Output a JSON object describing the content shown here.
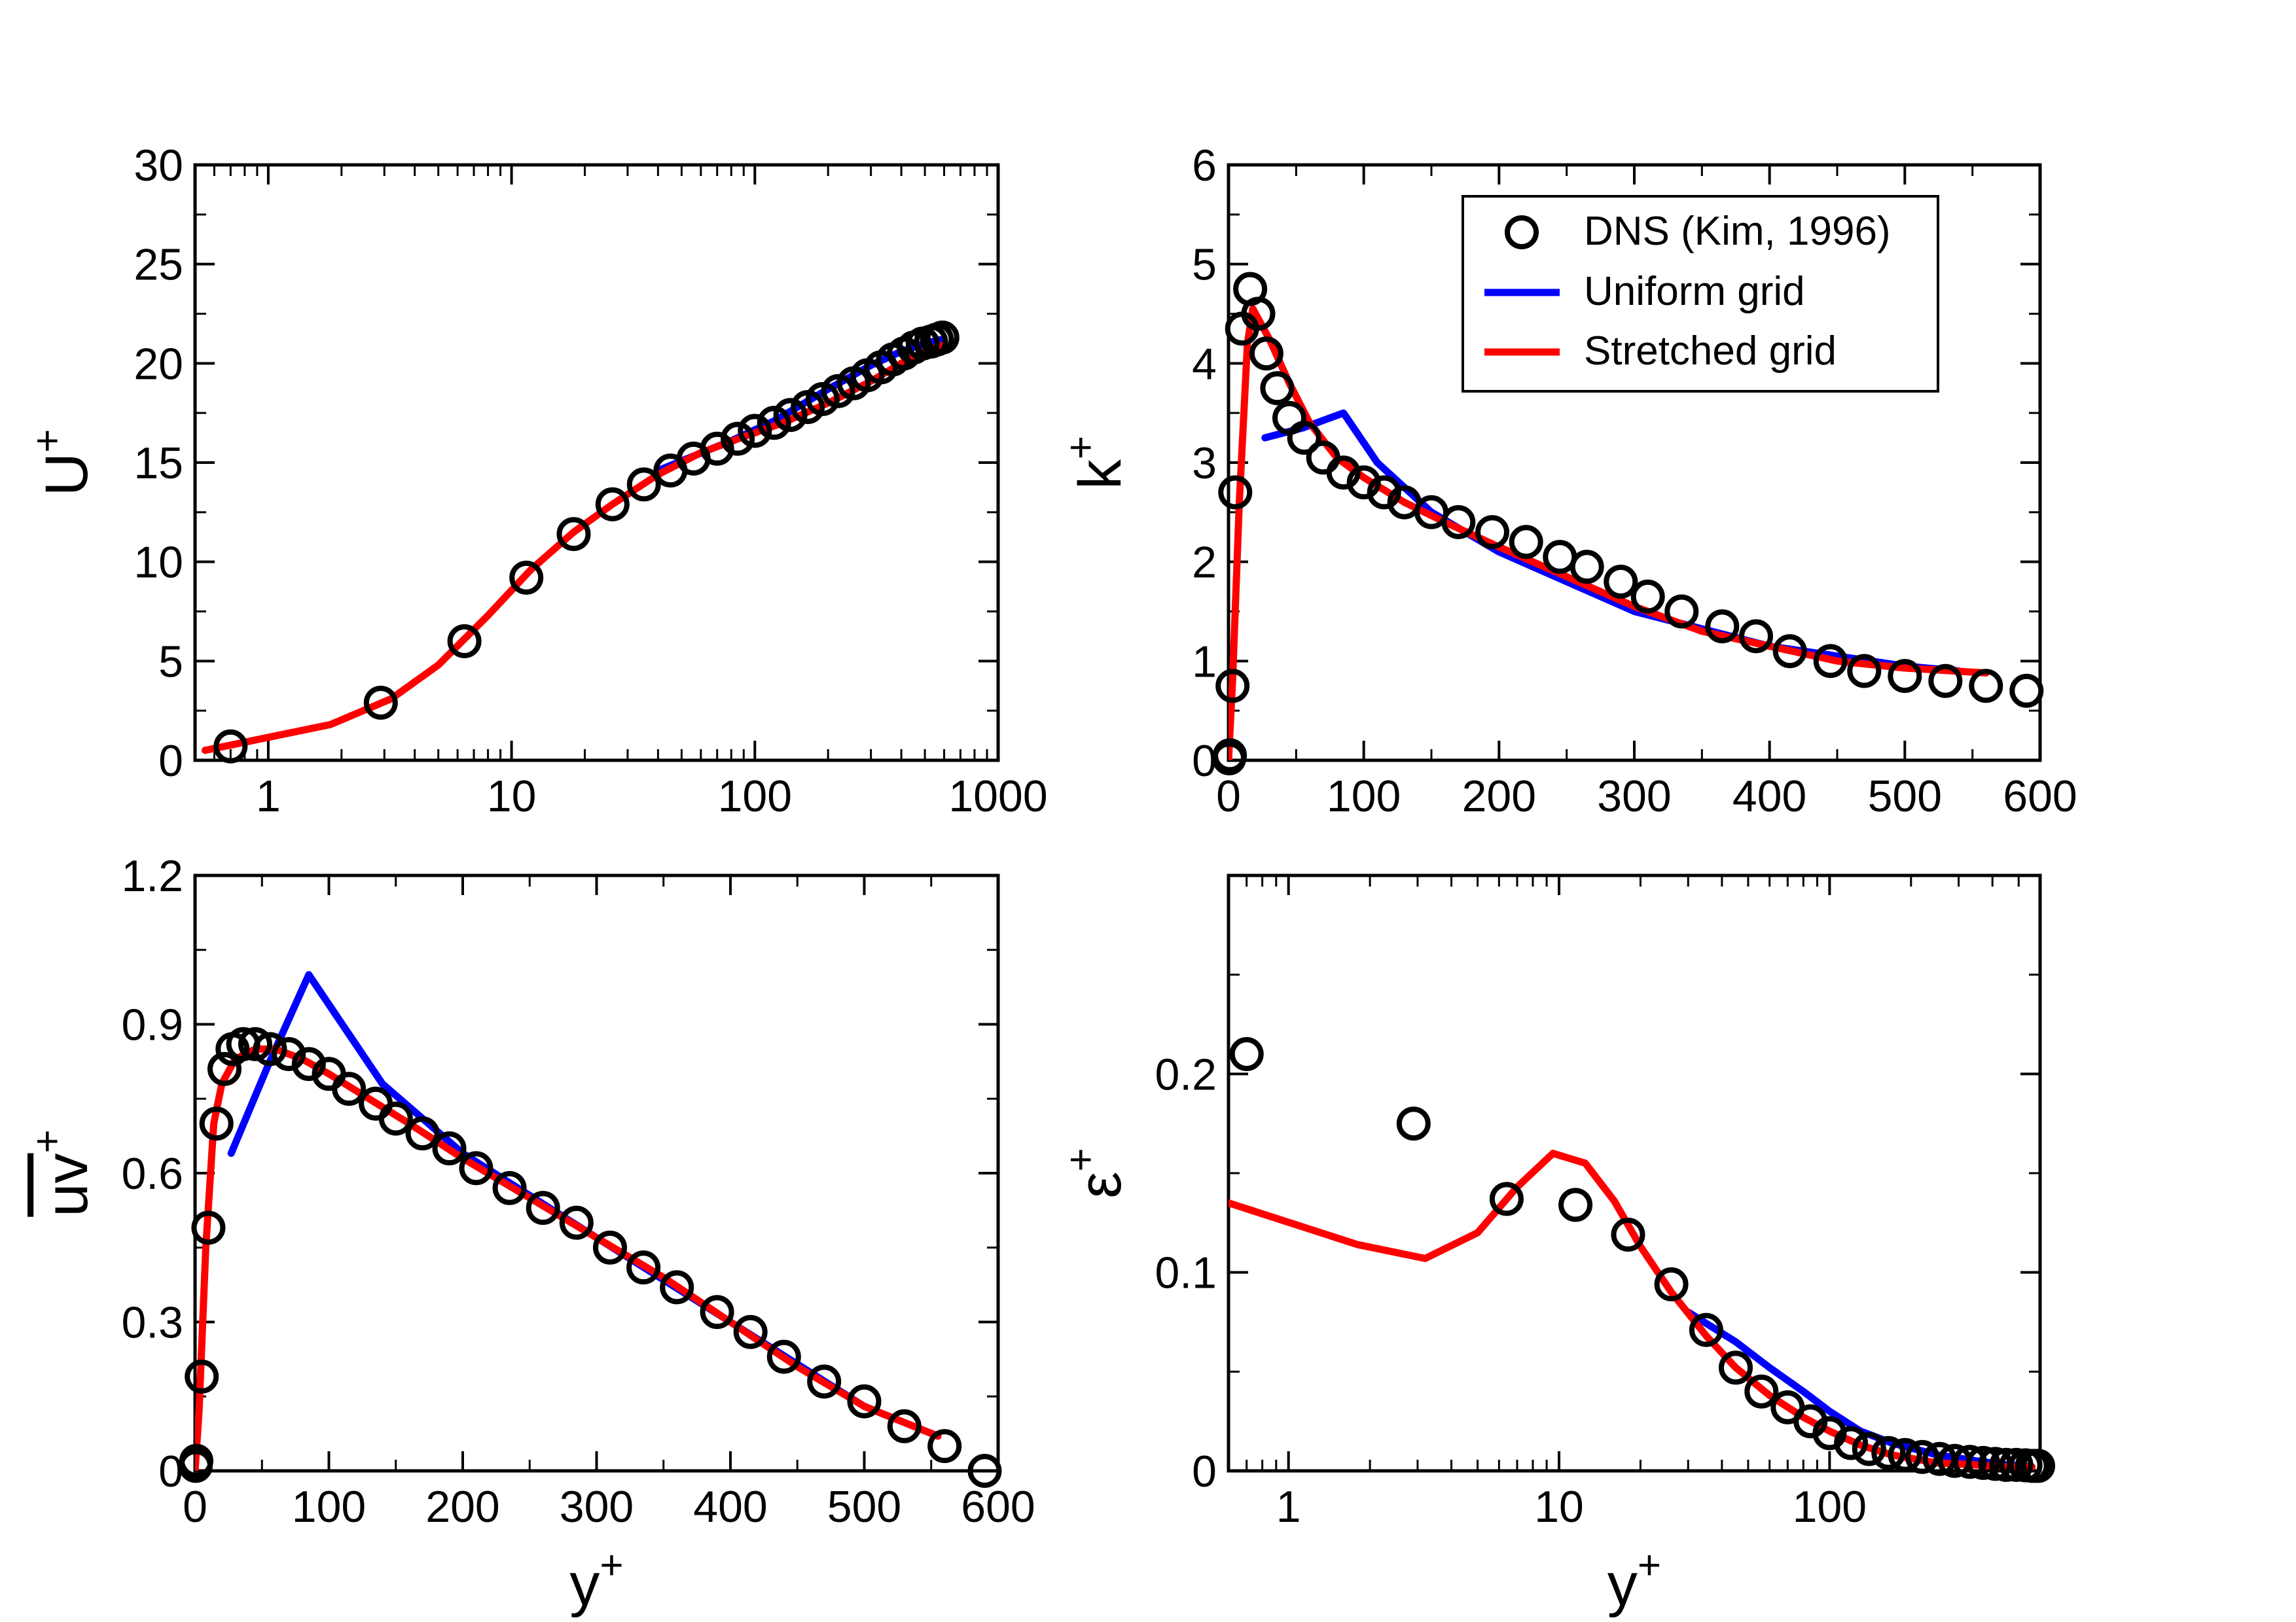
{
  "colors": {
    "dns": "#000000",
    "uniform": "#0000ff",
    "stretched": "#ff0000",
    "axis": "#000000"
  },
  "legend": {
    "items": [
      {
        "label": "DNS (Kim, 1996)",
        "marker": "open-circle"
      },
      {
        "label": "Uniform grid",
        "marker": "line"
      },
      {
        "label": "Stretched grid",
        "marker": "line"
      }
    ]
  },
  "chart_data": [
    {
      "id": "panel-u",
      "type": "line",
      "title": "",
      "ylabel": "U",
      "ylabel_sup": "+",
      "xlabel": "",
      "xlabel_sup": "",
      "xscale": "log",
      "xlim": [
        0.5,
        1000
      ],
      "ylim": [
        0,
        30
      ],
      "xticks": [
        1,
        10,
        100,
        1000
      ],
      "xtick_labels": [
        "1",
        "10",
        "100",
        "1000"
      ],
      "yticks": [
        0,
        5,
        10,
        15,
        20,
        25,
        30
      ],
      "ytick_labels": [
        "0",
        "5",
        "10",
        "15",
        "20",
        "25",
        "30"
      ],
      "legend": false,
      "series": [
        {
          "name": "DNS (Kim, 1996)",
          "style": "markers",
          "x": [
            0.7,
            2.9,
            6.4,
            11.5,
            18,
            26,
            35,
            45,
            56,
            70,
            85,
            100,
            120,
            140,
            165,
            190,
            220,
            255,
            290,
            330,
            370,
            410,
            450,
            490,
            530,
            560,
            590
          ],
          "y": [
            0.7,
            2.9,
            6.0,
            9.2,
            11.4,
            12.9,
            13.9,
            14.6,
            15.2,
            15.7,
            16.2,
            16.6,
            17.0,
            17.4,
            17.8,
            18.2,
            18.6,
            19.0,
            19.4,
            19.8,
            20.2,
            20.5,
            20.8,
            21.0,
            21.1,
            21.2,
            21.3
          ]
        },
        {
          "name": "Uniform grid",
          "style": "line",
          "x": [
            40,
            80,
            120,
            200,
            300,
            400,
            500,
            580
          ],
          "y": [
            14.6,
            16.1,
            17.1,
            18.7,
            19.9,
            20.6,
            21.0,
            21.2
          ]
        },
        {
          "name": "Stretched grid",
          "style": "line",
          "x": [
            0.55,
            1.8,
            3.2,
            5.0,
            8.0,
            12,
            18,
            26,
            40,
            60,
            90,
            130,
            200,
            300,
            400,
            500,
            580
          ],
          "y": [
            0.5,
            1.8,
            3.1,
            4.8,
            7.3,
            9.6,
            11.5,
            12.9,
            14.4,
            15.5,
            16.3,
            17.0,
            18.0,
            19.1,
            20.0,
            20.6,
            20.9
          ]
        }
      ]
    },
    {
      "id": "panel-k",
      "type": "line",
      "title": "",
      "ylabel": "k",
      "ylabel_sup": "+",
      "xlabel": "",
      "xlabel_sup": "",
      "xscale": "linear",
      "xlim": [
        0,
        600
      ],
      "ylim": [
        0,
        6
      ],
      "xticks": [
        0,
        100,
        200,
        300,
        400,
        500,
        600
      ],
      "xtick_labels": [
        "0",
        "100",
        "200",
        "300",
        "400",
        "500",
        "600"
      ],
      "yticks": [
        0,
        1,
        2,
        3,
        4,
        5,
        6
      ],
      "ytick_labels": [
        "0",
        "1",
        "2",
        "3",
        "4",
        "5",
        "6"
      ],
      "legend": true,
      "series": [
        {
          "name": "DNS (Kim, 1996)",
          "style": "markers",
          "x": [
            0.5,
            1,
            3,
            5,
            10,
            16,
            22,
            28,
            36,
            45,
            56,
            70,
            85,
            100,
            115,
            130,
            150,
            170,
            195,
            220,
            245,
            265,
            290,
            310,
            335,
            365,
            390,
            415,
            445,
            470,
            500,
            530,
            560,
            590
          ],
          "y": [
            0.02,
            0.05,
            0.75,
            2.7,
            4.35,
            4.75,
            4.5,
            4.1,
            3.75,
            3.45,
            3.25,
            3.05,
            2.9,
            2.8,
            2.7,
            2.6,
            2.5,
            2.4,
            2.3,
            2.2,
            2.05,
            1.95,
            1.8,
            1.65,
            1.5,
            1.35,
            1.25,
            1.1,
            1.0,
            0.9,
            0.85,
            0.8,
            0.75,
            0.7
          ]
        },
        {
          "name": "Uniform grid",
          "style": "line",
          "x": [
            27,
            55,
            85,
            110,
            150,
            200,
            300,
            400,
            500,
            540
          ],
          "y": [
            3.25,
            3.35,
            3.5,
            3.0,
            2.5,
            2.1,
            1.5,
            1.15,
            0.95,
            0.9
          ]
        },
        {
          "name": "Stretched grid",
          "style": "line",
          "x": [
            0,
            3,
            8,
            14,
            18,
            30,
            45,
            60,
            80,
            100,
            130,
            160,
            200,
            250,
            300,
            350,
            400,
            450,
            500,
            560
          ],
          "y": [
            0,
            0.8,
            2.6,
            4.2,
            4.55,
            4.25,
            3.8,
            3.4,
            3.05,
            2.85,
            2.6,
            2.4,
            2.15,
            1.85,
            1.55,
            1.3,
            1.15,
            1.0,
            0.93,
            0.88
          ]
        }
      ]
    },
    {
      "id": "panel-uv",
      "type": "line",
      "title": "",
      "ylabel": "uv",
      "ylabel_sup": "+",
      "xlabel": "y",
      "xlabel_sup": "+",
      "xscale": "linear",
      "xlim": [
        0,
        600
      ],
      "ylim": [
        0,
        1.2
      ],
      "xticks": [
        0,
        100,
        200,
        300,
        400,
        500,
        600
      ],
      "xtick_labels": [
        "0",
        "100",
        "200",
        "300",
        "400",
        "500",
        "600"
      ],
      "yticks": [
        0,
        0.3,
        0.6,
        0.9,
        1.2
      ],
      "ytick_labels": [
        "0",
        "0.3",
        "0.6",
        "0.9",
        "1.2"
      ],
      "legend": false,
      "series": [
        {
          "name": "DNS (Kim, 1996)",
          "style": "markers",
          "x": [
            0.5,
            1,
            5,
            10,
            16,
            22,
            28,
            36,
            45,
            56,
            70,
            85,
            100,
            115,
            135,
            150,
            170,
            190,
            210,
            235,
            260,
            285,
            310,
            335,
            360,
            390,
            415,
            440,
            470,
            500,
            530,
            560,
            590
          ],
          "y": [
            0.01,
            0.02,
            0.19,
            0.49,
            0.7,
            0.81,
            0.85,
            0.86,
            0.86,
            0.85,
            0.84,
            0.82,
            0.8,
            0.77,
            0.74,
            0.71,
            0.68,
            0.65,
            0.61,
            0.57,
            0.53,
            0.5,
            0.45,
            0.41,
            0.37,
            0.32,
            0.28,
            0.23,
            0.18,
            0.14,
            0.09,
            0.05,
            0.0
          ]
        },
        {
          "name": "Uniform grid",
          "style": "line",
          "x": [
            27,
            55,
            85,
            140,
            200,
            300,
            400,
            500,
            555
          ],
          "y": [
            0.64,
            0.82,
            1.0,
            0.78,
            0.64,
            0.47,
            0.3,
            0.13,
            0.07
          ]
        },
        {
          "name": "Stretched grid",
          "style": "line",
          "x": [
            0,
            3,
            8,
            14,
            20,
            30,
            45,
            60,
            80,
            100,
            130,
            160,
            200,
            250,
            300,
            350,
            400,
            450,
            500,
            555
          ],
          "y": [
            0,
            0.12,
            0.45,
            0.7,
            0.78,
            0.83,
            0.85,
            0.85,
            0.83,
            0.8,
            0.75,
            0.7,
            0.63,
            0.55,
            0.47,
            0.39,
            0.3,
            0.21,
            0.13,
            0.07
          ]
        }
      ]
    },
    {
      "id": "panel-eps",
      "type": "line",
      "title": "",
      "ylabel": "ε",
      "ylabel_sup": "+",
      "xlabel": "y",
      "xlabel_sup": "+",
      "xscale": "log",
      "xlim": [
        0.6,
        600
      ],
      "ylim": [
        0,
        0.3
      ],
      "xticks": [
        1,
        10,
        100
      ],
      "xtick_labels": [
        "1",
        "10",
        "100"
      ],
      "yticks": [
        0,
        0.1,
        0.2
      ],
      "ytick_labels": [
        "0",
        "0.1",
        "0.2"
      ],
      "legend": false,
      "series": [
        {
          "name": "DNS (Kim, 1996)",
          "style": "markers",
          "x": [
            0.7,
            2.9,
            6.4,
            11.5,
            18,
            26,
            35,
            45,
            56,
            70,
            85,
            100,
            120,
            140,
            165,
            190,
            220,
            255,
            290,
            330,
            370,
            410,
            450,
            490,
            530,
            560,
            580,
            590
          ],
          "y": [
            0.21,
            0.175,
            0.137,
            0.134,
            0.119,
            0.094,
            0.071,
            0.052,
            0.04,
            0.032,
            0.025,
            0.019,
            0.014,
            0.011,
            0.009,
            0.008,
            0.007,
            0.006,
            0.005,
            0.0045,
            0.004,
            0.0035,
            0.003,
            0.003,
            0.0028,
            0.0025,
            0.0025,
            0.0025
          ]
        },
        {
          "name": "Uniform grid",
          "style": "line",
          "x": [
            30,
            45,
            60,
            80,
            100,
            130,
            170,
            250,
            350,
            450,
            560
          ],
          "y": [
            0.08,
            0.065,
            0.052,
            0.04,
            0.03,
            0.02,
            0.014,
            0.008,
            0.005,
            0.003,
            0.002
          ]
        },
        {
          "name": "Stretched grid",
          "style": "line",
          "x": [
            0.6,
            1.8,
            3.2,
            5.0,
            7.0,
            9.5,
            12.5,
            16,
            20,
            26,
            35,
            45,
            60,
            80,
            100,
            130,
            170,
            250,
            350,
            450,
            560
          ],
          "y": [
            0.135,
            0.114,
            0.107,
            0.12,
            0.143,
            0.16,
            0.155,
            0.136,
            0.113,
            0.09,
            0.068,
            0.052,
            0.038,
            0.027,
            0.02,
            0.013,
            0.008,
            0.004,
            0.003,
            0.002,
            0.002
          ]
        }
      ]
    }
  ]
}
